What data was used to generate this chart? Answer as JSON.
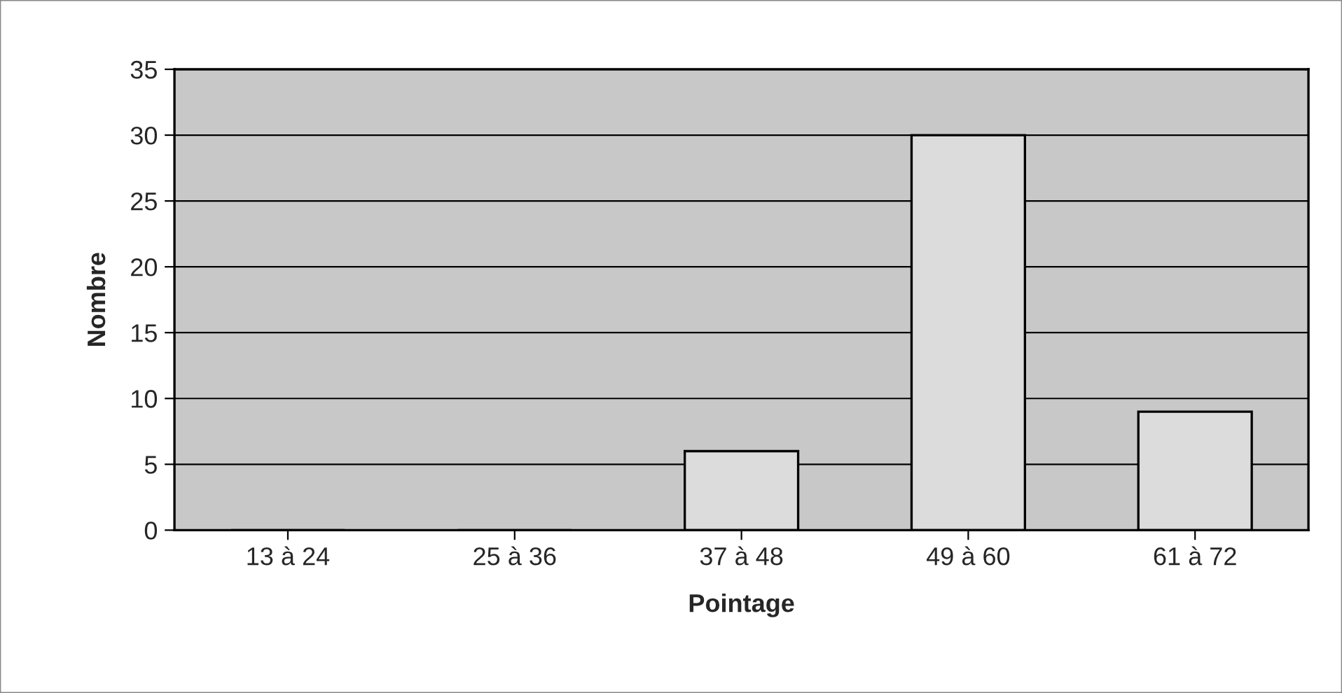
{
  "chart_data": {
    "type": "bar",
    "xlabel": "Pointage",
    "ylabel": "Nombre",
    "categories": [
      "13 à 24",
      "25 à 36",
      "37 à 48",
      "49 à 60",
      "61 à 72"
    ],
    "values": [
      0,
      0,
      6,
      30,
      9
    ],
    "color": "#dcdcdc",
    "ylim": [
      0,
      35
    ],
    "yticks": [
      0,
      5,
      10,
      15,
      20,
      25,
      30,
      35
    ],
    "grid": "y",
    "legend": false
  }
}
